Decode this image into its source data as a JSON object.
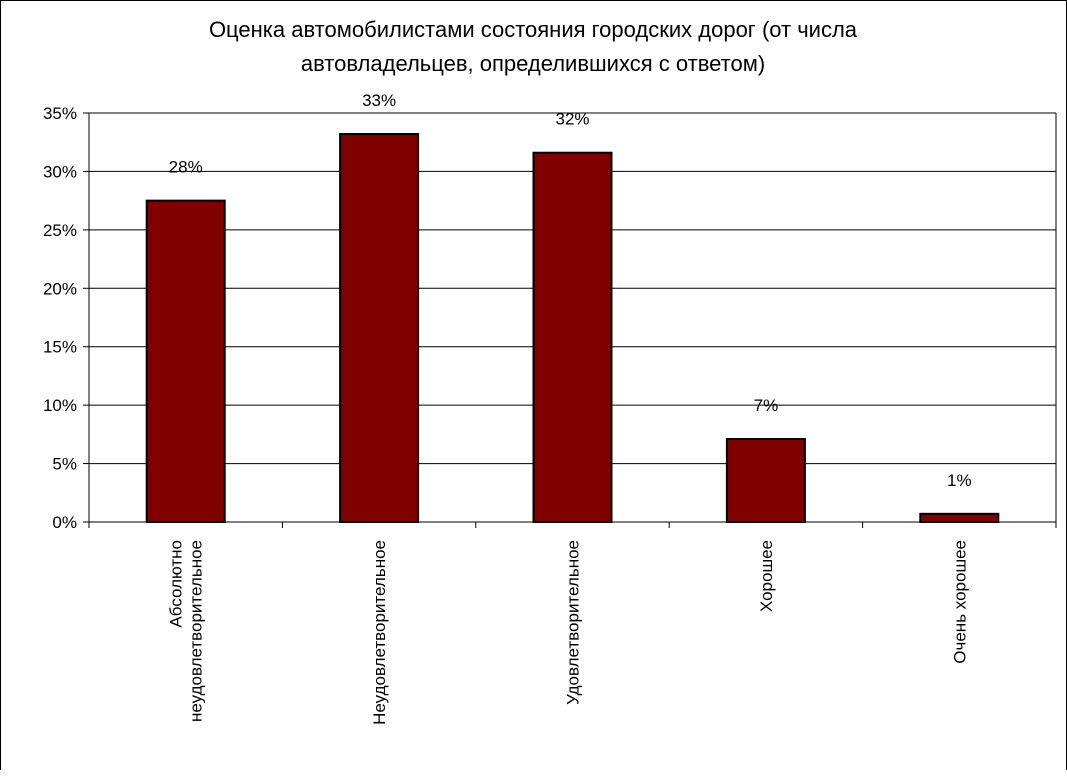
{
  "chart_data": {
    "type": "bar",
    "title_lines": [
      "Оценка автомобилистами состояния городских дорог (от числа",
      "автовладельцев, определившихся с ответом)"
    ],
    "categories": [
      [
        "Абсолютно",
        "неудовлетворительное"
      ],
      [
        "Неудовлетворительное"
      ],
      [
        "Удовлетворительное"
      ],
      [
        "Хорошее"
      ],
      [
        "Очень хорошее"
      ]
    ],
    "values": [
      27.5,
      33.2,
      31.6,
      7.1,
      0.7
    ],
    "data_labels": [
      "28%",
      "33%",
      "32%",
      "7%",
      "1%"
    ],
    "y_ticks": [
      "0%",
      "5%",
      "10%",
      "15%",
      "20%",
      "25%",
      "30%",
      "35%"
    ],
    "ylim": [
      0,
      35
    ],
    "grid": true,
    "legend": "none",
    "bar_color": "#800000"
  }
}
